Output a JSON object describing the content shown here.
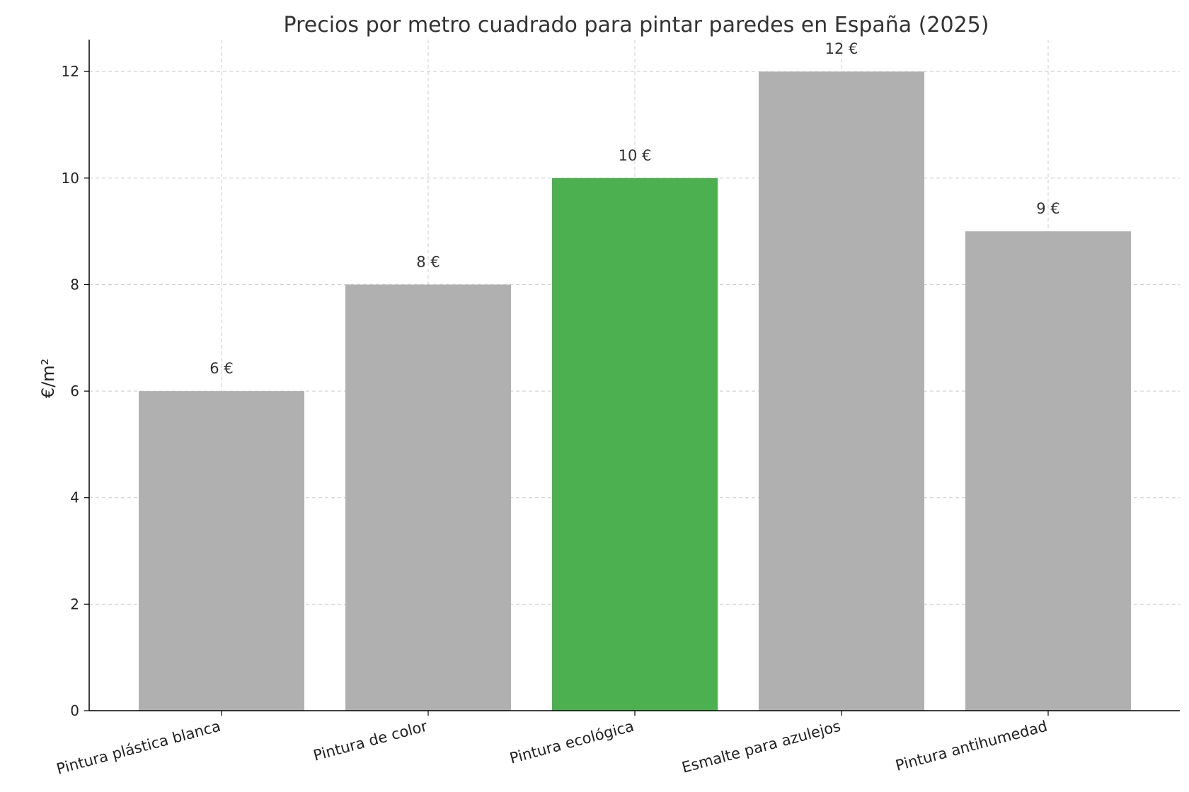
{
  "chart_data": {
    "type": "bar",
    "title": "Precios por metro cuadrado para pintar paredes en España (2025)",
    "xlabel": "",
    "ylabel": "€/m²",
    "categories": [
      "Pintura plástica blanca",
      "Pintura de color",
      "Pintura ecológica",
      "Esmalte para azulejos",
      "Pintura antihumedad"
    ],
    "values": [
      6,
      8,
      10,
      12,
      9
    ],
    "data_labels": [
      "6 €",
      "8 €",
      "10 €",
      "12 €",
      "9 €"
    ],
    "bar_colors": [
      "#b0b0b0",
      "#b0b0b0",
      "#4caf50",
      "#b0b0b0",
      "#b0b0b0"
    ],
    "ylim": [
      0,
      12.6
    ],
    "yticks": [
      0,
      2,
      4,
      6,
      8,
      10,
      12
    ],
    "grid": true,
    "legend": "none"
  }
}
